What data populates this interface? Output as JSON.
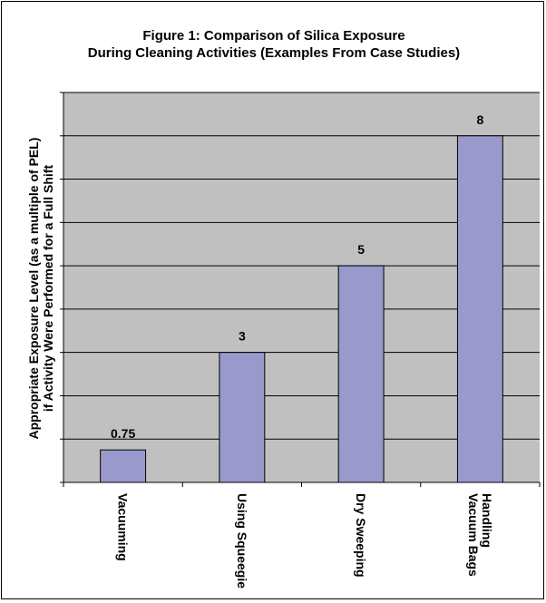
{
  "chart_data": {
    "type": "bar",
    "title_lines": [
      "Figure 1: Comparison of Silica Exposure",
      "During Cleaning Activities (Examples From Case Studies)"
    ],
    "ylabel_lines": [
      "Appropriate Exposure Level (as a multiple of PEL)",
      "if Activity Were Performed for a Full Shift"
    ],
    "xlabel": "",
    "categories": [
      {
        "lines": [
          "Vacuuming"
        ]
      },
      {
        "lines": [
          "Using Squeegie"
        ]
      },
      {
        "lines": [
          "Dry Sweeping"
        ]
      },
      {
        "lines": [
          "Handling",
          "Vacuum Bags"
        ]
      }
    ],
    "values": [
      0.75,
      3,
      5,
      8
    ],
    "data_labels": [
      "0.75",
      "3",
      "5",
      "8"
    ],
    "ylim": [
      0,
      9
    ],
    "y_major_step": 1,
    "y_tick_labels_shown": false,
    "grid": true,
    "legend": "none",
    "colors": {
      "plot_background": "#c0c0c0",
      "bar_fill": "#9999cc",
      "bar_stroke": "#000000",
      "gridline": "#000000",
      "text": "#000000"
    }
  }
}
